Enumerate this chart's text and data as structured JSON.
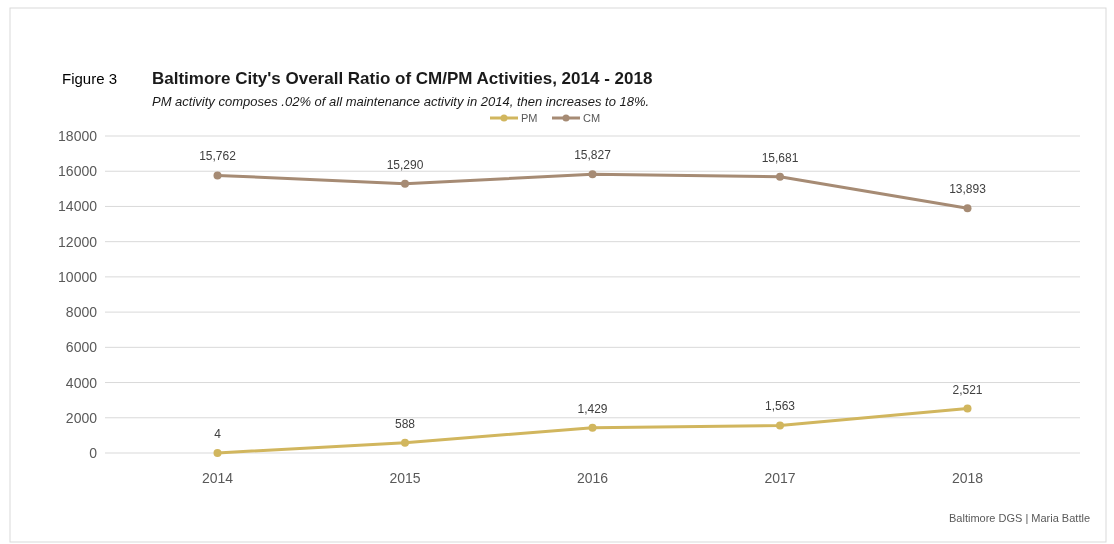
{
  "chart_data": {
    "type": "line",
    "title": "Baltimore City's Overall Ratio of CM/PM Activities, 2014 - 2018",
    "subtitle": "PM activity composes .02% of all maintenance activity in 2014, then increases to 18%.",
    "annotations": [
      "Figure 3",
      "Baltimore DGS | Maria Battle"
    ],
    "categories": [
      "2014",
      "2015",
      "2016",
      "2017",
      "2018"
    ],
    "series": [
      {
        "name": "PM",
        "color": "#d1b65e",
        "values": [
          4,
          588,
          1429,
          1563,
          2521
        ],
        "value_labels": [
          "4",
          "588",
          "1,429",
          "1,563",
          "2,521"
        ]
      },
      {
        "name": "CM",
        "color": "#a68b74",
        "values": [
          15762,
          15290,
          15827,
          15681,
          13893
        ],
        "value_labels": [
          "15,762",
          "15,290",
          "15,827",
          "15,681",
          "13,893"
        ]
      }
    ],
    "ylim": [
      0,
      18000
    ],
    "yticks": [
      0,
      2000,
      4000,
      6000,
      8000,
      10000,
      12000,
      14000,
      16000,
      18000
    ],
    "grid": "y",
    "legend": "top",
    "marker": "circle",
    "line_style": "solid"
  }
}
